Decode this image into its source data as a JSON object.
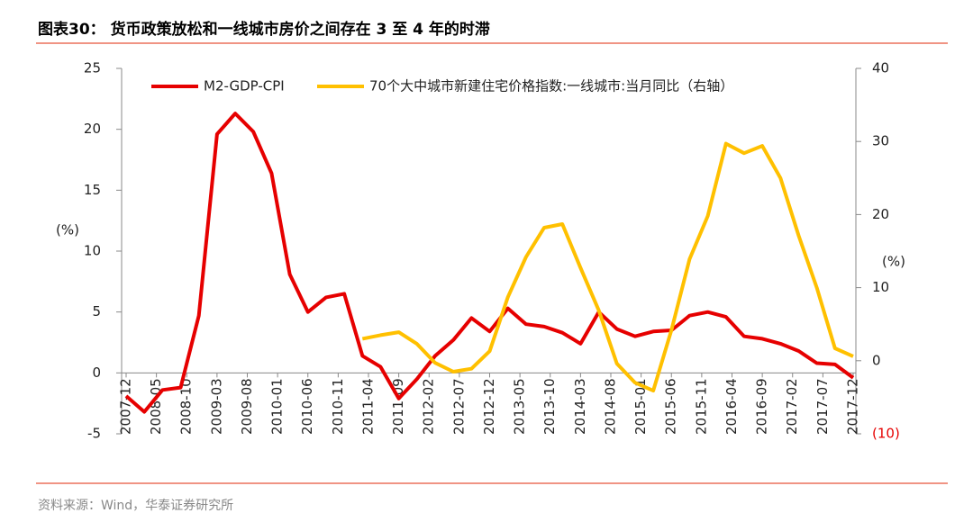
{
  "chart_data": {
    "type": "line",
    "title": "图表30：  货币政策放松和一线城市房价之间存在 3 至 4 年的时滞",
    "source": "资料来源：Wind，华泰证券研究所",
    "ylabel": "(%)",
    "y2label": "(%)",
    "x": [
      "2007-12",
      "2008-03",
      "2008-06",
      "2008-09",
      "2008-12",
      "2009-03",
      "2009-06",
      "2009-09",
      "2009-12",
      "2010-03",
      "2010-06",
      "2010-09",
      "2010-12",
      "2011-03",
      "2011-06",
      "2011-09",
      "2011-12",
      "2012-03",
      "2012-06",
      "2012-09",
      "2012-12",
      "2013-03",
      "2013-06",
      "2013-09",
      "2013-12",
      "2014-03",
      "2014-06",
      "2014-09",
      "2014-12",
      "2015-03",
      "2015-06",
      "2015-09",
      "2015-12",
      "2016-03",
      "2016-06",
      "2016-09",
      "2016-12",
      "2017-03",
      "2017-06",
      "2017-09",
      "2017-12"
    ],
    "xlim": [
      "2007-12",
      "2017-12"
    ],
    "xticks": [
      "2007-12",
      "2008-05",
      "2008-10",
      "2009-03",
      "2009-08",
      "2010-01",
      "2010-06",
      "2010-11",
      "2011-04",
      "2011-09",
      "2012-02",
      "2012-07",
      "2012-12",
      "2013-05",
      "2013-10",
      "2014-03",
      "2014-08",
      "2015-01",
      "2015-06",
      "2015-11",
      "2016-04",
      "2016-09",
      "2017-02",
      "2017-07",
      "2017-12"
    ],
    "ylim": [
      -5,
      25
    ],
    "yticks": [
      -5,
      0,
      5,
      10,
      15,
      20,
      25
    ],
    "y2lim": [
      -10,
      40
    ],
    "y2ticks": [
      {
        "value": -10,
        "label": "(10)"
      },
      0,
      10,
      20,
      30,
      40
    ],
    "y2_negative_tick_color": "#e60000",
    "series": [
      {
        "name": "M2-GDP-CPI",
        "color": "#e60000",
        "values": [
          -1.9,
          -3.2,
          -1.4,
          -1.2,
          4.7,
          19.6,
          21.3,
          19.8,
          16.4,
          8.1,
          5.0,
          6.2,
          6.5,
          1.4,
          0.5,
          -2.1,
          -0.5,
          1.4,
          2.7,
          4.5,
          3.4,
          5.3,
          4.0,
          3.8,
          3.3,
          2.4,
          5.0,
          3.6,
          3.0,
          3.4,
          3.5,
          4.7,
          5.0,
          4.6,
          3.0,
          2.8,
          2.4,
          1.8,
          0.8,
          0.7,
          -0.4
        ]
      },
      {
        "name": "70个大中城市新建住宅价格指数:一线城市:当月同比（右轴）",
        "color": "#ffc000",
        "axis": "y2",
        "values": [
          null,
          null,
          null,
          null,
          null,
          null,
          null,
          null,
          null,
          null,
          null,
          null,
          null,
          3.0,
          3.5,
          3.9,
          2.3,
          -0.3,
          -1.5,
          -1.1,
          1.3,
          8.7,
          14.2,
          18.2,
          18.7,
          12.7,
          6.9,
          -0.4,
          -3.0,
          -4.1,
          4.2,
          13.9,
          19.8,
          29.7,
          28.4,
          29.4,
          25.0,
          17.1,
          10.0,
          1.7,
          0.6
        ]
      }
    ]
  }
}
